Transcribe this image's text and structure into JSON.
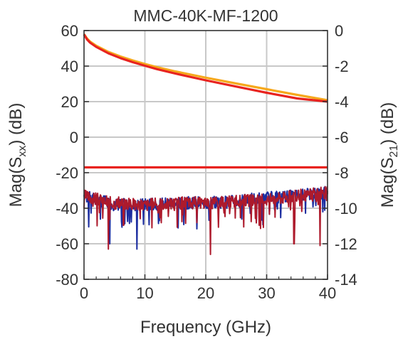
{
  "chart_data": {
    "type": "line",
    "title": "MMC-40K-MF-1200",
    "xlabel": "Frequency (GHz)",
    "ylabel_left": {
      "prefix": "Mag(S",
      "sub": "xx",
      "suffix": ") (dB)"
    },
    "ylabel_right": {
      "prefix": "Mag(S",
      "sub": "21",
      "suffix": ") (dB)"
    },
    "xlim": [
      0,
      40
    ],
    "ylim_left": [
      -80,
      60
    ],
    "ylim_right": [
      -14,
      0
    ],
    "x_ticks": [
      "0",
      "10",
      "20",
      "30",
      "40"
    ],
    "y_ticks_left": [
      "60",
      "40",
      "20",
      "0",
      "-20",
      "-40",
      "-60",
      "-80"
    ],
    "y_ticks_right": [
      "0",
      "-2",
      "-4",
      "-6",
      "-8",
      "-10",
      "-12",
      "-14"
    ],
    "grid": true,
    "series": [
      {
        "axis": "right",
        "color": "#f6a81c",
        "x": [
          0,
          0.5,
          1,
          2,
          4,
          6,
          8,
          10,
          12,
          15,
          20,
          25,
          30,
          35,
          40
        ],
        "y": [
          -0.2,
          -0.45,
          -0.62,
          -0.85,
          -1.2,
          -1.46,
          -1.68,
          -1.88,
          -2.06,
          -2.3,
          -2.65,
          -2.98,
          -3.3,
          -3.62,
          -3.92
        ]
      },
      {
        "axis": "right",
        "color": "#e8231f",
        "x": [
          0,
          0.5,
          1,
          2,
          4,
          6,
          8,
          10,
          12,
          15,
          20,
          25,
          30,
          35,
          40
        ],
        "y": [
          -0.22,
          -0.5,
          -0.68,
          -0.92,
          -1.28,
          -1.55,
          -1.78,
          -1.98,
          -2.17,
          -2.42,
          -2.8,
          -3.15,
          -3.5,
          -3.82,
          -4.0
        ]
      },
      {
        "axis": "right",
        "color": "#e8231f",
        "x": [
          0,
          40
        ],
        "y": [
          -7.7,
          -7.7
        ]
      },
      {
        "axis": "left",
        "color": "#1c2da0",
        "noise": {
          "seed": 7,
          "spikes": [
            [
              8.7,
              -63
            ],
            [
              4.2,
              -60
            ]
          ]
        },
        "x": [
          0,
          5,
          10,
          15,
          20,
          25,
          30,
          35,
          40
        ],
        "y": [
          -33,
          -38,
          -38,
          -37,
          -37,
          -36,
          -34,
          -33,
          -31
        ]
      },
      {
        "axis": "left",
        "color": "#ad1a2c",
        "noise": {
          "seed": 3,
          "spikes": [
            [
              20.8,
              -66
            ],
            [
              4.0,
              -63
            ],
            [
              38.8,
              -61
            ],
            [
              34.5,
              -60
            ]
          ]
        },
        "x": [
          0,
          5,
          10,
          15,
          20,
          25,
          30,
          35,
          40
        ],
        "y": [
          -33,
          -37,
          -38,
          -37,
          -37,
          -36,
          -35,
          -33,
          -31
        ]
      }
    ]
  }
}
